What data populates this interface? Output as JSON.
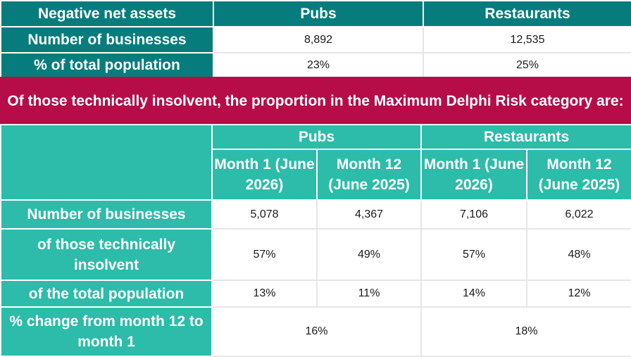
{
  "top_table": {
    "header": [
      "Negative net assets",
      "Pubs",
      "Restaurants"
    ],
    "rows": [
      {
        "label": "Number of businesses",
        "pubs": "8,892",
        "restaurants": "12,535"
      },
      {
        "label": "% of total population",
        "pubs": "23%",
        "restaurants": "25%"
      }
    ]
  },
  "banner": "Of those technically insolvent, the proportion in the Maximum Delphi Risk category are:",
  "bottom_table": {
    "groups": [
      "Pubs",
      "Restaurants"
    ],
    "subheaders": [
      "Month 1 (June 2026)",
      "Month 12 (June 2025)",
      "Month 1 (June 2026)",
      "Month 12 (June 2025)"
    ],
    "rows": [
      {
        "label": "Number of businesses",
        "values": [
          "5,078",
          "4,367",
          "7,106",
          "6,022"
        ]
      },
      {
        "label": "of those technically insolvent",
        "values": [
          "57%",
          "49%",
          "57%",
          "48%"
        ]
      },
      {
        "label": "of the total population",
        "values": [
          "13%",
          "11%",
          "14%",
          "12%"
        ]
      }
    ],
    "change_row": {
      "label": "% change from month 12 to month 1",
      "pubs": "16%",
      "restaurants": "18%"
    }
  },
  "colors": {
    "dark_teal": "#067d7c",
    "teal": "#2cbca9",
    "crimson": "#b60c48"
  }
}
